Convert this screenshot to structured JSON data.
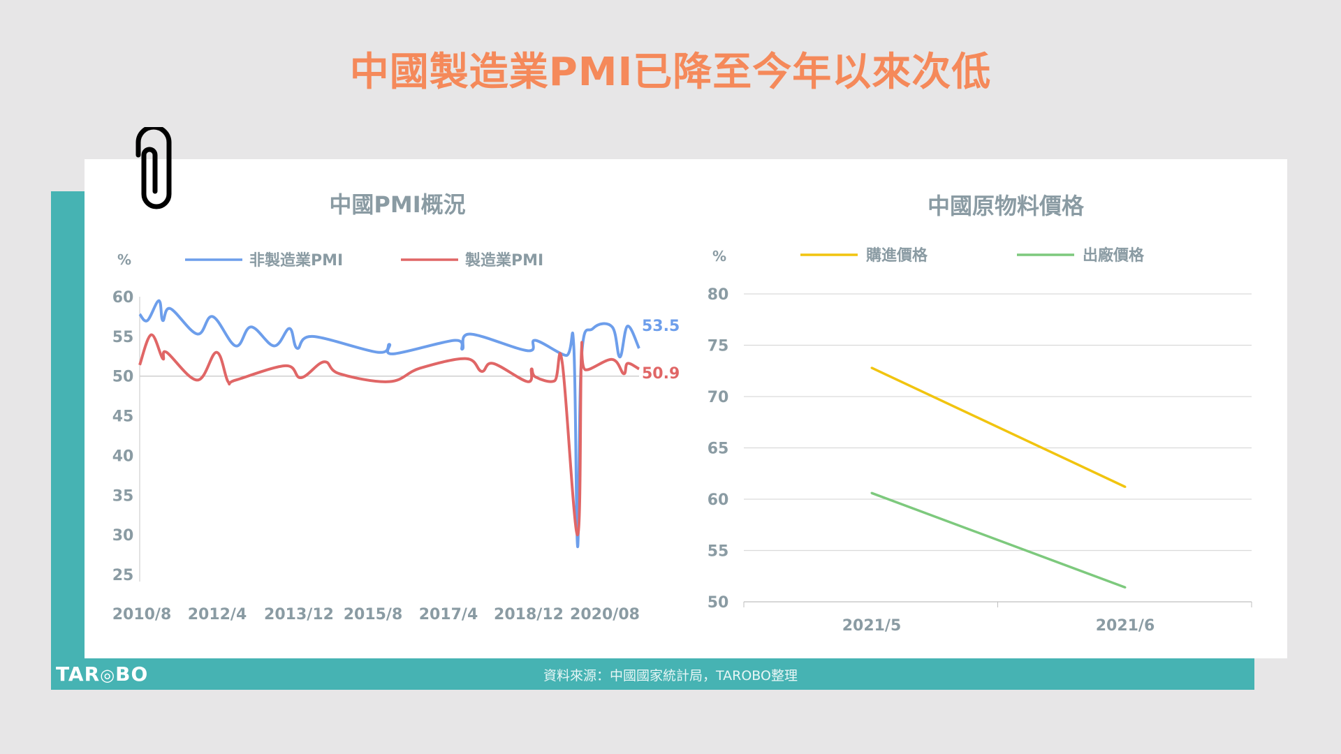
{
  "page_title": "中國製造業PMI已降至今年以來次低",
  "footer": {
    "source": "資料來源：中國國家統計局，TAROBO整理",
    "logo": "TAROBO"
  },
  "colors": {
    "title": "#f5895a",
    "teal": "#46b3b3",
    "nonmfg": "#6d9eeb",
    "mfg": "#e06666",
    "purchase": "#f1c40f",
    "exfactory": "#7dc97d",
    "axis_text": "#8a9ba3"
  },
  "chart_data": [
    {
      "type": "line",
      "title": "中國PMI概況",
      "ylabel": "%",
      "ylim": [
        25,
        60
      ],
      "yticks": [
        "60",
        "55",
        "50",
        "45",
        "40",
        "35",
        "30",
        "25"
      ],
      "xlim": [
        "2010/8",
        "2021/6"
      ],
      "xticks": [
        "2010/8",
        "2012/4",
        "2013/12",
        "2015/8",
        "2017/4",
        "2018/12",
        "2020/08"
      ],
      "reference_line": 50,
      "grid": false,
      "legend": "top",
      "series": [
        {
          "name": "非製造業PMI",
          "color": "#6d9eeb",
          "end_label": "53.5",
          "points": [
            [
              "2010/8",
              57.8
            ],
            [
              "2010/10",
              57
            ],
            [
              "2011/1",
              59.5
            ],
            [
              "2011/2",
              57
            ],
            [
              "2011/4",
              58.5
            ],
            [
              "2011/11",
              55.3
            ],
            [
              "2012/3",
              57.5
            ],
            [
              "2012/9",
              53.8
            ],
            [
              "2013/1",
              56.2
            ],
            [
              "2013/7",
              53.8
            ],
            [
              "2013/11",
              56
            ],
            [
              "2014/1",
              53.5
            ],
            [
              "2014/5",
              55
            ],
            [
              "2015/10",
              53
            ],
            [
              "2016/1",
              54
            ],
            [
              "2016/2",
              52.8
            ],
            [
              "2017/6",
              54.5
            ],
            [
              "2017/8",
              53.4
            ],
            [
              "2017/10",
              55.3
            ],
            [
              "2019/1",
              53.2
            ],
            [
              "2019/3",
              54.5
            ],
            [
              "2019/11",
              52.6
            ],
            [
              "2020/1",
              53.8
            ],
            [
              "2020/2",
              28.5
            ],
            [
              "2020/3",
              52.3
            ],
            [
              "2020/6",
              56
            ],
            [
              "2020/11",
              56.2
            ],
            [
              "2021/1",
              52.4
            ],
            [
              "2021/3",
              56.3
            ],
            [
              "2021/6",
              53.5
            ]
          ]
        },
        {
          "name": "製造業PMI",
          "color": "#e06666",
          "end_label": "50.9",
          "points": [
            [
              "2010/8",
              51.4
            ],
            [
              "2010/11",
              55.2
            ],
            [
              "2011/2",
              52.2
            ],
            [
              "2011/3",
              53
            ],
            [
              "2011/11",
              49.5
            ],
            [
              "2012/4",
              53
            ],
            [
              "2012/7",
              49.3
            ],
            [
              "2012/9",
              49.5
            ],
            [
              "2013/10",
              51.3
            ],
            [
              "2014/2",
              49.8
            ],
            [
              "2014/8",
              51.8
            ],
            [
              "2014/12",
              50.3
            ],
            [
              "2016/1",
              49.3
            ],
            [
              "2016/9",
              51
            ],
            [
              "2017/9",
              52.2
            ],
            [
              "2018/1",
              50.6
            ],
            [
              "2018/4",
              51.6
            ],
            [
              "2019/1",
              49.3
            ],
            [
              "2019/2",
              50.9
            ],
            [
              "2019/3",
              49.9
            ],
            [
              "2019/8",
              49.4
            ],
            [
              "2019/10",
              51.7
            ],
            [
              "2020/2",
              30
            ],
            [
              "2020/3",
              53
            ],
            [
              "2020/4",
              50.8
            ],
            [
              "2020/11",
              52.1
            ],
            [
              "2021/2",
              50.3
            ],
            [
              "2021/3",
              51.6
            ],
            [
              "2021/6",
              50.9
            ]
          ]
        }
      ]
    },
    {
      "type": "line",
      "title": "中國原物料價格",
      "ylabel": "%",
      "ylim": [
        50,
        80
      ],
      "yticks": [
        "80",
        "75",
        "70",
        "65",
        "60",
        "55",
        "50"
      ],
      "categories": [
        "2021/5",
        "2021/6"
      ],
      "grid": true,
      "legend": "top",
      "series": [
        {
          "name": "購進價格",
          "color": "#f1c40f",
          "values": [
            72.8,
            61.2
          ]
        },
        {
          "name": "出廠價格",
          "color": "#7dc97d",
          "values": [
            60.6,
            51.4
          ]
        }
      ]
    }
  ]
}
